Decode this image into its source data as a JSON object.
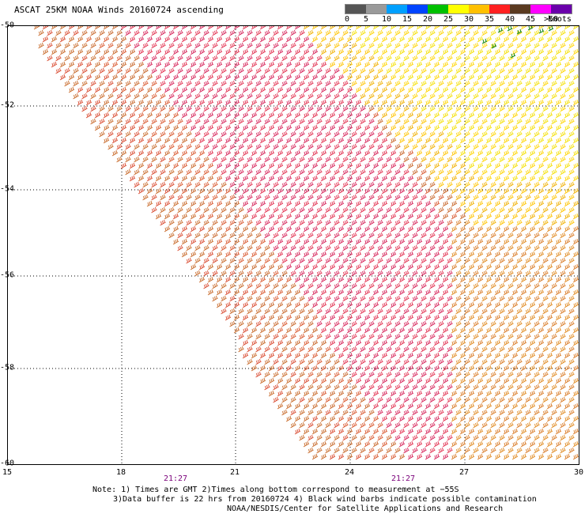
{
  "header": {
    "title": "ASCAT 25KM NOAA Winds 20160724 ascending"
  },
  "legend": {
    "ticks": [
      "0",
      "5",
      "10",
      "15",
      "20",
      "25",
      "30",
      "35",
      "40",
      "45",
      ">50"
    ],
    "units": "knots",
    "colors": [
      "#555555",
      "#9a9a9a",
      "#00a0ff",
      "#0044ff",
      "#00c000",
      "#ffff00",
      "#ffc000",
      "#ff2020",
      "#5a3a20",
      "#ff00ff",
      "#6a00aa"
    ]
  },
  "axes": {
    "y_ticks": [
      "-50",
      "-52",
      "-54",
      "-56",
      "-58",
      "-60"
    ],
    "x_ticks": [
      "15",
      "18",
      "21",
      "24",
      "27",
      "30"
    ],
    "times": [
      "21:27",
      "21:27"
    ]
  },
  "notes": {
    "line1": "Note: 1) Times are GMT 2)Times along bottom correspond to measurement at −55S",
    "line2": "3)Data buffer is 22 hrs from 20160724 4) Black wind barbs indicate possible contamination",
    "line3": "NOAA/NESDIS/Center for Satellite Applications and Research"
  }
}
